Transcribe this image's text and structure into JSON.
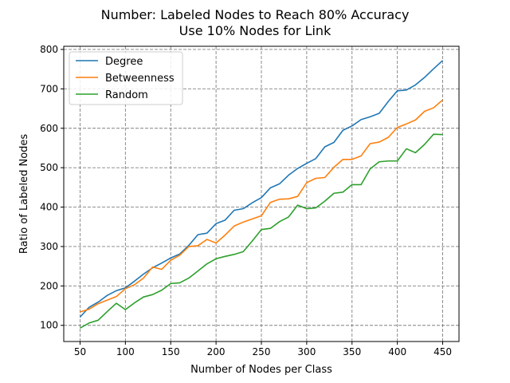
{
  "chart_data": {
    "type": "line",
    "title": "Number: Labeled Nodes to Reach 80% Accuracy",
    "subtitle": "Use 10% Nodes for Link",
    "xlabel": "Number of Nodes per Class",
    "ylabel": "Ratio of Labeled Nodes",
    "xlim": [
      32,
      468
    ],
    "ylim": [
      59,
      808
    ],
    "xticks": [
      50,
      100,
      150,
      200,
      250,
      300,
      350,
      400,
      450
    ],
    "yticks": [
      100,
      200,
      300,
      400,
      500,
      600,
      700,
      800
    ],
    "grid": true,
    "legend_position": "top-left",
    "x": [
      50,
      60,
      70,
      80,
      90,
      100,
      110,
      120,
      130,
      140,
      150,
      160,
      170,
      180,
      190,
      200,
      210,
      220,
      230,
      240,
      250,
      260,
      270,
      280,
      290,
      300,
      310,
      320,
      330,
      340,
      350,
      360,
      370,
      380,
      390,
      400,
      410,
      420,
      430,
      440,
      450
    ],
    "series": [
      {
        "name": "Degree",
        "color": "#1f77b4",
        "values": [
          121,
          146,
          159,
          176,
          188,
          195,
          212,
          230,
          246,
          258,
          271,
          281,
          303,
          330,
          334,
          358,
          367,
          392,
          396,
          411,
          424,
          449,
          459,
          481,
          498,
          511,
          523,
          553,
          564,
          595,
          606,
          622,
          629,
          638,
          668,
          695,
          697,
          710,
          729,
          751,
          772
        ]
      },
      {
        "name": "Betweenness",
        "color": "#ff7f0e",
        "values": [
          134,
          141,
          155,
          164,
          173,
          193,
          203,
          220,
          248,
          242,
          265,
          278,
          300,
          302,
          318,
          309,
          329,
          352,
          362,
          370,
          378,
          412,
          420,
          421,
          427,
          462,
          473,
          475,
          501,
          521,
          521,
          530,
          561,
          565,
          577,
          602,
          611,
          621,
          643,
          652,
          672
        ]
      },
      {
        "name": "Random",
        "color": "#2ca02c",
        "values": [
          93,
          106,
          113,
          135,
          156,
          140,
          157,
          172,
          178,
          189,
          206,
          208,
          220,
          238,
          256,
          269,
          275,
          280,
          287,
          314,
          343,
          346,
          363,
          375,
          405,
          396,
          398,
          415,
          435,
          438,
          457,
          457,
          497,
          515,
          517,
          517,
          548,
          538,
          559,
          585,
          584
        ]
      }
    ]
  }
}
